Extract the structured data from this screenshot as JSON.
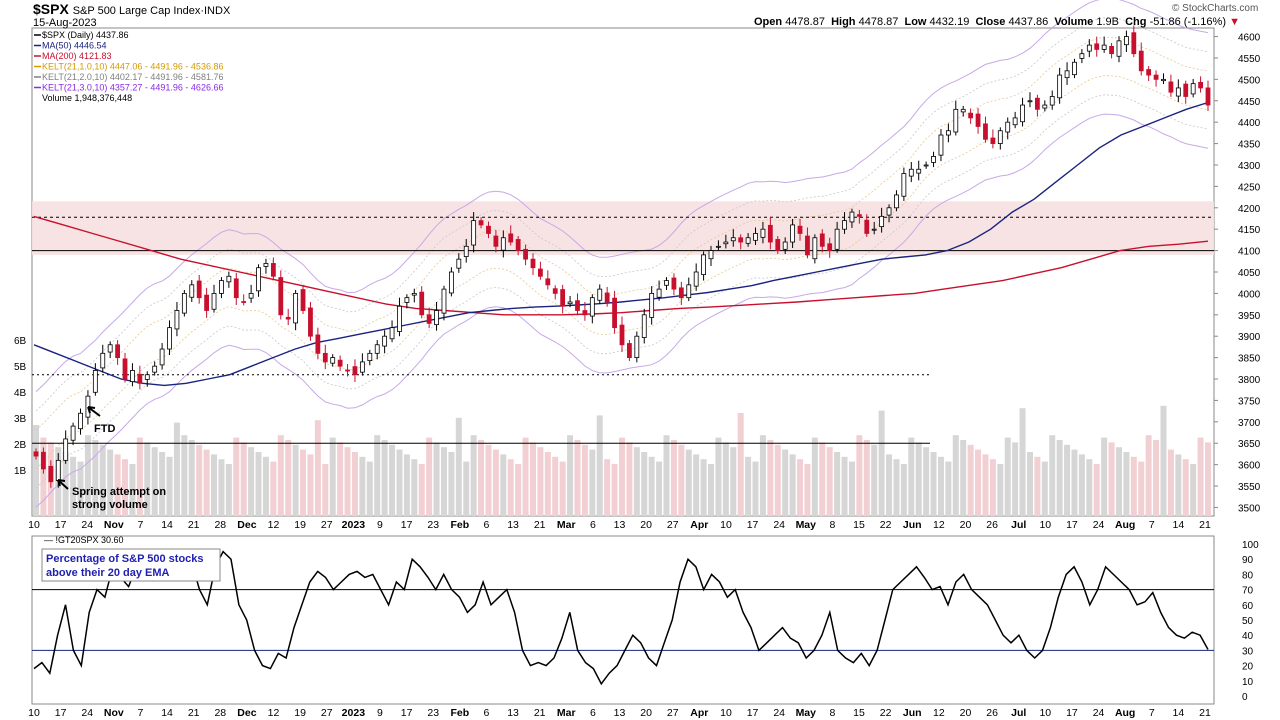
{
  "header": {
    "symbol": "$SPX",
    "name": "S&P 500 Large Cap Index",
    "exchange": "INDX",
    "date": "15-Aug-2023",
    "watermark": "© StockCharts.com",
    "open_label": "Open",
    "open": "4478.87",
    "high_label": "High",
    "high": "4478.87",
    "low_label": "Low",
    "low": "4432.19",
    "close_label": "Close",
    "close": "4437.86",
    "volume_label": "Volume",
    "volume": "1.9B",
    "chg_label": "Chg",
    "chg": "-51.86 (-1.16%)"
  },
  "legend": [
    {
      "text": "$SPX (Daily) 4437.86",
      "color": "#000000"
    },
    {
      "text": "MA(50) 4446.54",
      "color": "#1a237e"
    },
    {
      "text": "MA(200) 4121.83",
      "color": "#c8102e"
    },
    {
      "text": "KELT(21,1.0,10) 4447.06 - 4491.96 - 4536.86",
      "color": "#d49a00"
    },
    {
      "text": "KELT(21,2.0,10) 4402.17 - 4491.96 - 4581.76",
      "color": "#808080"
    },
    {
      "text": "KELT(21,3.0,10) 4357.27 - 4491.96 - 4626.66",
      "color": "#8a2be2"
    },
    {
      "text": "Volume 1,948,376,448",
      "color": "#000000"
    }
  ],
  "annotations": {
    "ftd": "FTD",
    "spring_line1": "Spring attempt on",
    "spring_line2": "strong volume",
    "lower_box_line1": "Percentage of S&P 500 stocks",
    "lower_box_line2": "above their 20 day EMA"
  },
  "colors": {
    "up": "#ffffff",
    "down": "#c8102e",
    "ma50": "#1a237e",
    "ma200": "#c8102e",
    "band": "#c8a8e8",
    "zone": "#f6e0e0"
  },
  "chart_data": [
    {
      "type": "candlestick",
      "title": "$SPX S&P 500 Large Cap Index INDX",
      "yticks": [
        3500,
        3550,
        3600,
        3650,
        3700,
        3750,
        3800,
        3850,
        3900,
        3950,
        4000,
        4050,
        4100,
        4150,
        4200,
        4250,
        4300,
        4350,
        4400,
        4450,
        4500,
        4550,
        4600
      ],
      "ylim": [
        3480,
        4620
      ],
      "volume_ticks": [
        "1B",
        "2B",
        "3B",
        "4B",
        "5B",
        "6B"
      ],
      "xticks": [
        "10",
        "17",
        "24",
        "Nov",
        "7",
        "14",
        "21",
        "28",
        "Dec",
        "12",
        "19",
        "27",
        "2023",
        "9",
        "17",
        "23",
        "Feb",
        "6",
        "13",
        "21",
        "Mar",
        "6",
        "13",
        "20",
        "27",
        "Apr",
        "10",
        "17",
        "24",
        "May",
        "8",
        "15",
        "22",
        "Jun",
        "12",
        "20",
        "26",
        "Jul",
        "10",
        "17",
        "24",
        "Aug",
        "7",
        "14",
        "21"
      ],
      "close_series": [
        3620,
        3590,
        3560,
        3610,
        3660,
        3690,
        3720,
        3760,
        3820,
        3860,
        3880,
        3850,
        3800,
        3820,
        3790,
        3810,
        3830,
        3870,
        3920,
        3960,
        4000,
        4020,
        3990,
        3960,
        4000,
        4030,
        4040,
        3990,
        3980,
        4000,
        4060,
        4070,
        4040,
        3950,
        3940,
        4000,
        3960,
        3900,
        3860,
        3840,
        3850,
        3830,
        3820,
        3810,
        3840,
        3860,
        3880,
        3900,
        3920,
        3970,
        3990,
        4000,
        3950,
        3930,
        3960,
        4010,
        4050,
        4080,
        4110,
        4170,
        4160,
        4140,
        4110,
        4130,
        4120,
        4100,
        4080,
        4060,
        4040,
        4020,
        4000,
        3970,
        3980,
        3960,
        3950,
        3990,
        4010,
        3980,
        3920,
        3880,
        3850,
        3900,
        3950,
        4000,
        4010,
        4030,
        4010,
        3990,
        4020,
        4050,
        4090,
        4100,
        4110,
        4120,
        4130,
        4120,
        4130,
        4140,
        4150,
        4120,
        4100,
        4120,
        4160,
        4140,
        4090,
        4130,
        4110,
        4100,
        4150,
        4170,
        4190,
        4180,
        4140,
        4150,
        4180,
        4200,
        4230,
        4280,
        4290,
        4290,
        4300,
        4320,
        4370,
        4380,
        4430,
        4430,
        4410,
        4390,
        4360,
        4350,
        4380,
        4400,
        4410,
        4440,
        4450,
        4430,
        4440,
        4460,
        4510,
        4520,
        4540,
        4560,
        4580,
        4570,
        4580,
        4560,
        4590,
        4600,
        4560,
        4520,
        4510,
        4500,
        4500,
        4470,
        4480,
        4460,
        4490,
        4480,
        4440
      ],
      "ma50_series": [
        3880,
        3860,
        3840,
        3820,
        3800,
        3790,
        3785,
        3790,
        3800,
        3810,
        3830,
        3850,
        3870,
        3885,
        3895,
        3905,
        3915,
        3925,
        3935,
        3945,
        3955,
        3960,
        3965,
        3968,
        3970,
        3973,
        3976,
        3980,
        3985,
        3990,
        3996,
        4002,
        4010,
        4018,
        4030,
        4040,
        4050,
        4060,
        4070,
        4080,
        4085,
        4090,
        4100,
        4120,
        4150,
        4190,
        4220,
        4260,
        4300,
        4340,
        4370,
        4390,
        4410,
        4430,
        4446
      ],
      "ma200_series": [
        4180,
        4160,
        4140,
        4120,
        4100,
        4080,
        4065,
        4050,
        4035,
        4020,
        4005,
        3990,
        3975,
        3965,
        3960,
        3955,
        3950,
        3950,
        3950,
        3952,
        3955,
        3960,
        3965,
        3968,
        3972,
        3976,
        3980,
        3985,
        3990,
        3995,
        4000,
        4010,
        4020,
        4030,
        4045,
        4060,
        4080,
        4100,
        4110,
        4115,
        4122
      ],
      "volume_ticks_values": [
        1,
        2,
        3,
        4,
        5,
        6
      ]
    },
    {
      "type": "line",
      "title": "!GT20SPX 30.60",
      "yticks": [
        0,
        10,
        20,
        30,
        40,
        50,
        60,
        70,
        80,
        90,
        100
      ],
      "ylim": [
        0,
        100
      ],
      "hlines": [
        30,
        70
      ],
      "xticks": [
        "10",
        "17",
        "24",
        "Nov",
        "7",
        "14",
        "21",
        "28",
        "Dec",
        "12",
        "19",
        "27",
        "2023",
        "9",
        "17",
        "23",
        "Feb",
        "6",
        "13",
        "21",
        "Mar",
        "6",
        "13",
        "20",
        "27",
        "Apr",
        "10",
        "17",
        "24",
        "May",
        "8",
        "15",
        "22",
        "Jun",
        "12",
        "20",
        "26",
        "Jul",
        "10",
        "17",
        "24",
        "Aug",
        "7",
        "14",
        "21"
      ],
      "values": [
        18,
        22,
        15,
        40,
        60,
        30,
        20,
        55,
        70,
        65,
        85,
        78,
        72,
        85,
        80,
        76,
        90,
        86,
        82,
        92,
        88,
        70,
        60,
        85,
        95,
        90,
        60,
        50,
        30,
        20,
        18,
        28,
        25,
        45,
        60,
        75,
        82,
        78,
        70,
        75,
        80,
        82,
        78,
        80,
        70,
        60,
        75,
        70,
        90,
        85,
        78,
        70,
        80,
        70,
        65,
        55,
        60,
        75,
        60,
        65,
        70,
        55,
        30,
        20,
        22,
        20,
        25,
        38,
        55,
        30,
        22,
        18,
        8,
        15,
        20,
        30,
        40,
        35,
        25,
        20,
        35,
        50,
        75,
        90,
        85,
        70,
        80,
        75,
        65,
        70,
        55,
        45,
        30,
        35,
        40,
        45,
        38,
        35,
        25,
        30,
        40,
        55,
        30,
        25,
        22,
        28,
        20,
        30,
        50,
        70,
        75,
        80,
        85,
        78,
        70,
        72,
        60,
        75,
        80,
        70,
        65,
        60,
        50,
        40,
        35,
        40,
        30,
        25,
        30,
        45,
        65,
        80,
        85,
        75,
        60,
        70,
        85,
        80,
        75,
        70,
        60,
        62,
        68,
        55,
        45,
        40,
        38,
        42,
        40,
        30.6
      ]
    }
  ]
}
